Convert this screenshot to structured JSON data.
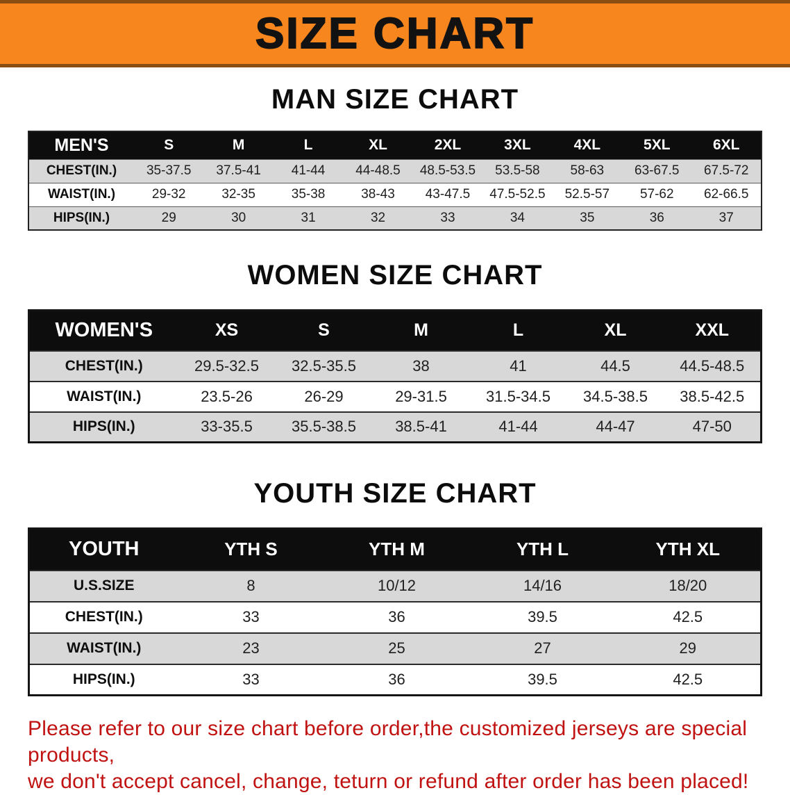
{
  "banner": {
    "title": "SIZE CHART",
    "background": "#F6861D",
    "text_color": "#121212"
  },
  "colors": {
    "header_row_black": "#0d0d0d",
    "stripe_gray": "#d8d8d8",
    "disclaimer_red": "#C11212"
  },
  "chart_data": [
    {
      "type": "table",
      "title": "MAN SIZE CHART",
      "header_label": "MEN'S",
      "columns": [
        "S",
        "M",
        "L",
        "XL",
        "2XL",
        "3XL",
        "4XL",
        "5XL",
        "6XL"
      ],
      "rows": [
        {
          "label": "CHEST(IN.)",
          "values": [
            "35-37.5",
            "37.5-41",
            "41-44",
            "44-48.5",
            "48.5-53.5",
            "53.5-58",
            "58-63",
            "63-67.5",
            "67.5-72"
          ]
        },
        {
          "label": "WAIST(IN.)",
          "values": [
            "29-32",
            "32-35",
            "35-38",
            "38-43",
            "43-47.5",
            "47.5-52.5",
            "52.5-57",
            "57-62",
            "62-66.5"
          ]
        },
        {
          "label": "HIPS(IN.)",
          "values": [
            "29",
            "30",
            "31",
            "32",
            "33",
            "34",
            "35",
            "36",
            "37"
          ]
        }
      ]
    },
    {
      "type": "table",
      "title": "WOMEN SIZE CHART",
      "header_label": "WOMEN'S",
      "columns": [
        "XS",
        "S",
        "M",
        "L",
        "XL",
        "XXL"
      ],
      "rows": [
        {
          "label": "CHEST(IN.)",
          "values": [
            "29.5-32.5",
            "32.5-35.5",
            "38",
            "41",
            "44.5",
            "44.5-48.5"
          ]
        },
        {
          "label": "WAIST(IN.)",
          "values": [
            "23.5-26",
            "26-29",
            "29-31.5",
            "31.5-34.5",
            "34.5-38.5",
            "38.5-42.5"
          ]
        },
        {
          "label": "HIPS(IN.)",
          "values": [
            "33-35.5",
            "35.5-38.5",
            "38.5-41",
            "41-44",
            "44-47",
            "47-50"
          ]
        }
      ]
    },
    {
      "type": "table",
      "title": "YOUTH SIZE CHART",
      "header_label": "YOUTH",
      "columns": [
        "YTH S",
        "YTH M",
        "YTH L",
        "YTH XL"
      ],
      "rows": [
        {
          "label": "U.S.SIZE",
          "values": [
            "8",
            "10/12",
            "14/16",
            "18/20"
          ]
        },
        {
          "label": "CHEST(IN.)",
          "values": [
            "33",
            "36",
            "39.5",
            "42.5"
          ]
        },
        {
          "label": "WAIST(IN.)",
          "values": [
            "23",
            "25",
            "27",
            "29"
          ]
        },
        {
          "label": "HIPS(IN.)",
          "values": [
            "33",
            "36",
            "39.5",
            "42.5"
          ]
        }
      ]
    }
  ],
  "disclaimer": {
    "line1": "Please refer to our size chart before order,the customized jerseys are special products,",
    "line2": "we don't accept cancel, change, teturn or refund after order has been placed!"
  }
}
